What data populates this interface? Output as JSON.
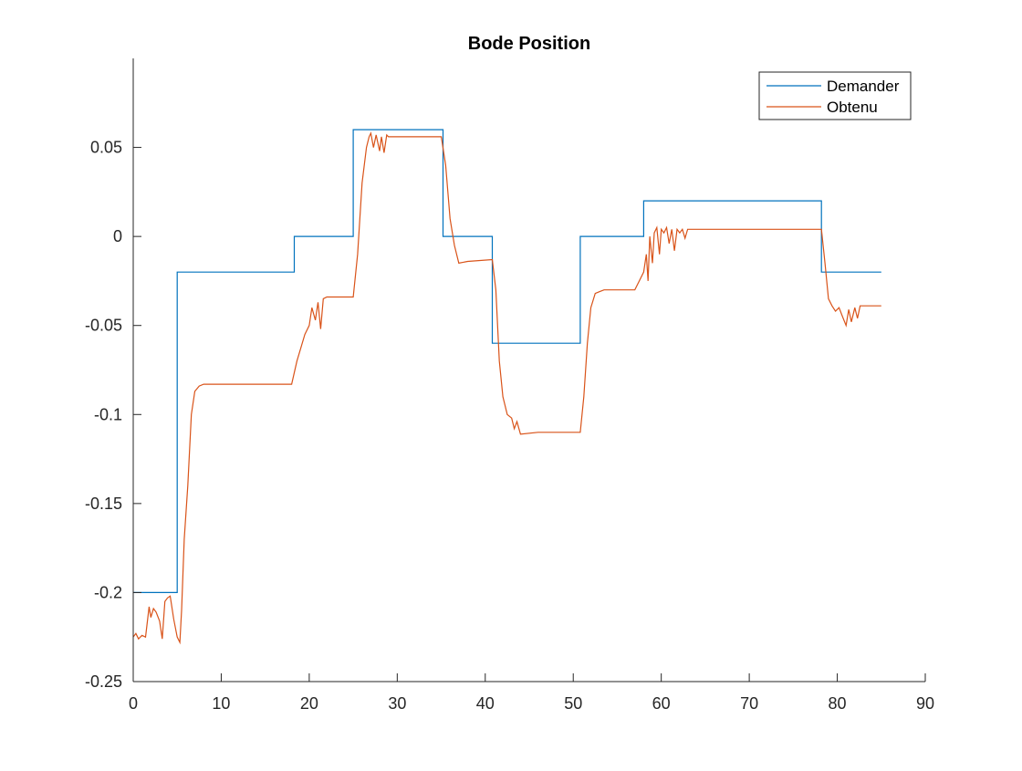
{
  "chart_data": {
    "type": "line",
    "title": "Bode Position",
    "xlabel": "",
    "ylabel": "",
    "xlim": [
      0,
      90
    ],
    "ylim": [
      -0.25,
      0.1
    ],
    "xticks": [
      0,
      10,
      20,
      30,
      40,
      50,
      60,
      70,
      80,
      90
    ],
    "xtick_labels": [
      "0",
      "10",
      "20",
      "30",
      "40",
      "50",
      "60",
      "70",
      "80",
      "90"
    ],
    "yticks": [
      -0.25,
      -0.2,
      -0.15,
      -0.1,
      -0.05,
      0,
      0.05
    ],
    "ytick_labels": [
      "-0.25",
      "-0.2",
      "-0.15",
      "-0.1",
      "-0.05",
      "0",
      "0.05"
    ],
    "grid": false,
    "legend": {
      "location": "top-right",
      "entries": [
        "Demander",
        "Obtenu"
      ]
    },
    "series": [
      {
        "name": "Demander",
        "color": "#0072BD",
        "step": true,
        "x": [
          0,
          5,
          5,
          18.3,
          18.3,
          25,
          25,
          35.2,
          35.2,
          40.8,
          40.8,
          50.8,
          50.8,
          58,
          58,
          78.2,
          78.2,
          85
        ],
        "y": [
          -0.2,
          -0.2,
          -0.02,
          -0.02,
          0,
          0,
          0.06,
          0.06,
          0,
          0,
          -0.06,
          -0.06,
          0,
          0,
          0.02,
          0.02,
          -0.02,
          -0.02
        ]
      },
      {
        "name": "Obtenu",
        "color": "#D95319",
        "x": [
          0,
          0.3,
          0.6,
          1.0,
          1.4,
          1.8,
          2.0,
          2.3,
          2.6,
          3.0,
          3.3,
          3.6,
          3.9,
          4.2,
          4.6,
          5.0,
          5.3,
          5.5,
          5.8,
          6.2,
          6.6,
          7.0,
          7.5,
          8.0,
          9.0,
          12,
          15,
          18.0,
          18.6,
          19.5,
          20.0,
          20.3,
          20.7,
          21.0,
          21.3,
          21.6,
          22.0,
          23,
          25.0,
          25.5,
          26.0,
          26.5,
          26.8,
          27.0,
          27.3,
          27.6,
          28.0,
          28.2,
          28.5,
          28.8,
          29.0,
          30,
          32,
          35.0,
          35.5,
          36.0,
          36.5,
          37.0,
          38,
          40.8,
          41.2,
          41.6,
          42.0,
          42.5,
          43.0,
          43.3,
          43.6,
          44.0,
          46,
          49,
          50.8,
          51.2,
          51.6,
          52.0,
          52.5,
          53.0,
          53.5,
          55,
          57.0,
          57.5,
          58.0,
          58.3,
          58.5,
          58.7,
          59.0,
          59.2,
          59.5,
          59.8,
          60.0,
          60.3,
          60.6,
          60.9,
          61.2,
          61.5,
          61.8,
          62.1,
          62.4,
          62.7,
          63.0,
          65,
          70,
          75,
          78.2,
          78.6,
          79.0,
          79.4,
          79.8,
          80.2,
          80.6,
          81.0,
          81.3,
          81.6,
          82.0,
          82.3,
          82.6,
          83.0,
          84,
          85
        ],
        "y": [
          -0.225,
          -0.223,
          -0.226,
          -0.224,
          -0.225,
          -0.208,
          -0.214,
          -0.209,
          -0.211,
          -0.216,
          -0.226,
          -0.205,
          -0.203,
          -0.202,
          -0.215,
          -0.225,
          -0.228,
          -0.21,
          -0.17,
          -0.14,
          -0.1,
          -0.087,
          -0.084,
          -0.083,
          -0.083,
          -0.083,
          -0.083,
          -0.083,
          -0.07,
          -0.055,
          -0.05,
          -0.04,
          -0.047,
          -0.037,
          -0.052,
          -0.035,
          -0.034,
          -0.034,
          -0.034,
          -0.01,
          0.03,
          0.05,
          0.056,
          0.058,
          0.05,
          0.057,
          0.048,
          0.056,
          0.047,
          0.057,
          0.056,
          0.056,
          0.056,
          0.056,
          0.04,
          0.01,
          -0.005,
          -0.015,
          -0.014,
          -0.013,
          -0.03,
          -0.07,
          -0.09,
          -0.1,
          -0.102,
          -0.108,
          -0.104,
          -0.111,
          -0.11,
          -0.11,
          -0.11,
          -0.09,
          -0.06,
          -0.04,
          -0.032,
          -0.031,
          -0.03,
          -0.03,
          -0.03,
          -0.025,
          -0.02,
          -0.01,
          -0.025,
          0.0,
          -0.015,
          0.002,
          0.005,
          -0.01,
          0.004,
          0.002,
          0.005,
          -0.004,
          0.004,
          -0.008,
          0.004,
          0.002,
          0.004,
          -0.001,
          0.004,
          0.004,
          0.004,
          0.004,
          0.004,
          -0.015,
          -0.035,
          -0.039,
          -0.042,
          -0.04,
          -0.045,
          -0.05,
          -0.041,
          -0.048,
          -0.04,
          -0.046,
          -0.039,
          -0.039,
          -0.039,
          -0.039
        ]
      }
    ]
  }
}
